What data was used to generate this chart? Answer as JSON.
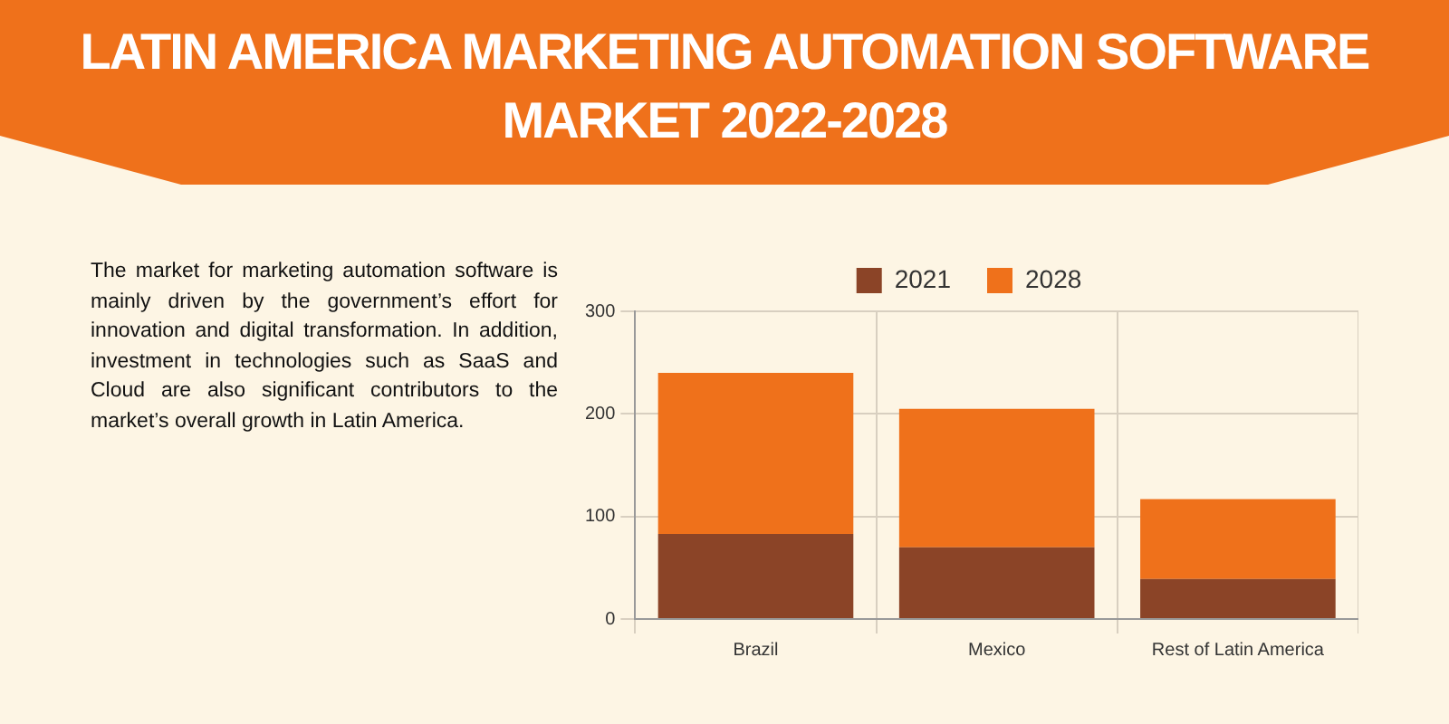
{
  "chart_data": {
    "type": "bar",
    "title": "LATIN AMERICA MARKETING AUTOMATION SOFTWARE MARKET 2022-2028",
    "categories": [
      "Brazil",
      "Mexico",
      "Rest of Latin America"
    ],
    "series": [
      {
        "name": "2021",
        "color": "#8b4427",
        "values": [
          83,
          70,
          39
        ]
      },
      {
        "name": "2028",
        "color": "#ef711b",
        "values": [
          157,
          135,
          78
        ]
      }
    ],
    "stacked": true,
    "ylim": [
      0,
      300
    ],
    "yticks": [
      0,
      100,
      200,
      300
    ],
    "grid": true,
    "legend": "top",
    "annotations": [
      "The market for marketing automation software is mainly driven by the government’s effort for innovation and digital transformation. In addition, investment in technologies such as SaaS and Cloud are also significant contributors to the market’s overall growth in Latin America."
    ]
  }
}
